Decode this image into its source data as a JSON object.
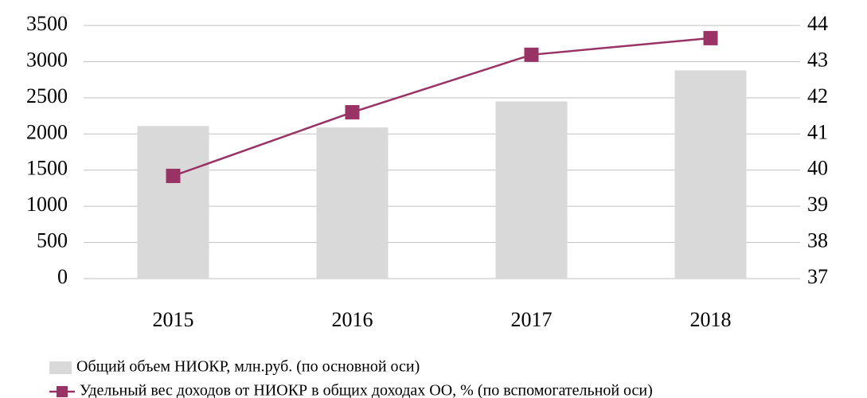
{
  "chart_data": {
    "type": "bar",
    "categories": [
      "2015",
      "2016",
      "2017",
      "2018"
    ],
    "series": [
      {
        "name": "Общий объем НИОКР, млн.руб. (по основной оси)",
        "type": "bar",
        "color": "#d9d9d9",
        "values": [
          2110,
          2090,
          2450,
          2880
        ]
      },
      {
        "name": "Удельный вес доходов от НИОКР в общих доходах ОО, % (по вспомогательной оси)",
        "type": "line",
        "axis": "y2",
        "color": "#993366",
        "values": [
          39.84,
          41.6,
          43.19,
          43.65
        ]
      }
    ],
    "ylim": [
      0,
      3500
    ],
    "yticks": [
      0,
      500,
      1000,
      1500,
      2000,
      2500,
      3000,
      3500
    ],
    "y2lim": [
      37,
      44
    ],
    "y2ticks": [
      37,
      38,
      39,
      40,
      41,
      42,
      43,
      44
    ],
    "grid": true,
    "legend": "bottom"
  }
}
